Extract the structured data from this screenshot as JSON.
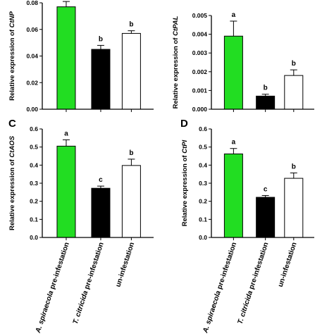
{
  "chart_data": [
    {
      "panel": "",
      "type": "bar",
      "ylabel_prefix": "Relative expression of ",
      "gene": "CtNP",
      "ylim": [
        0,
        0.08
      ],
      "yticks": [
        0.0,
        0.02,
        0.04,
        0.06,
        0.08
      ],
      "tick_decimals": 2,
      "values": [
        0.077,
        0.045,
        0.057
      ],
      "errors": [
        0.004,
        0.003,
        0.002
      ],
      "letters": [
        "a",
        "b",
        "b"
      ],
      "colors": [
        "#22dd22",
        "#000000",
        "#ffffff"
      ]
    },
    {
      "panel": "",
      "type": "bar",
      "ylabel_prefix": "Relative expression of ",
      "gene": "CtPAL",
      "ylim": [
        0,
        0.005
      ],
      "yticks": [
        0.0,
        0.001,
        0.002,
        0.003,
        0.004,
        0.005
      ],
      "tick_decimals": 3,
      "values": [
        0.0039,
        0.0007,
        0.0018
      ],
      "errors": [
        0.0008,
        0.0001,
        0.0003
      ],
      "letters": [
        "a",
        "b",
        "b"
      ],
      "colors": [
        "#22dd22",
        "#000000",
        "#ffffff"
      ]
    },
    {
      "panel": "C",
      "type": "bar",
      "ylabel_prefix": "Relative expression of ",
      "gene": "CtAOS",
      "ylim": [
        0,
        0.6
      ],
      "yticks": [
        0.0,
        0.1,
        0.2,
        0.3,
        0.4,
        0.5,
        0.6
      ],
      "tick_decimals": 1,
      "values": [
        0.505,
        0.272,
        0.398
      ],
      "errors": [
        0.035,
        0.012,
        0.035
      ],
      "letters": [
        "a",
        "c",
        "b"
      ],
      "colors": [
        "#22dd22",
        "#000000",
        "#ffffff"
      ]
    },
    {
      "panel": "D",
      "type": "bar",
      "ylabel_prefix": "Relative expression of ",
      "gene": "CtPI",
      "ylim": [
        0,
        0.6
      ],
      "yticks": [
        0.0,
        0.1,
        0.2,
        0.3,
        0.4,
        0.5,
        0.6
      ],
      "tick_decimals": 1,
      "values": [
        0.462,
        0.222,
        0.327
      ],
      "errors": [
        0.03,
        0.01,
        0.03
      ],
      "letters": [
        "a",
        "c",
        "b"
      ],
      "colors": [
        "#22dd22",
        "#000000",
        "#ffffff"
      ]
    }
  ],
  "categories": [
    "A. spiraecola pre-infestation",
    "T. citricida pre-infestation",
    "un-infestation"
  ]
}
